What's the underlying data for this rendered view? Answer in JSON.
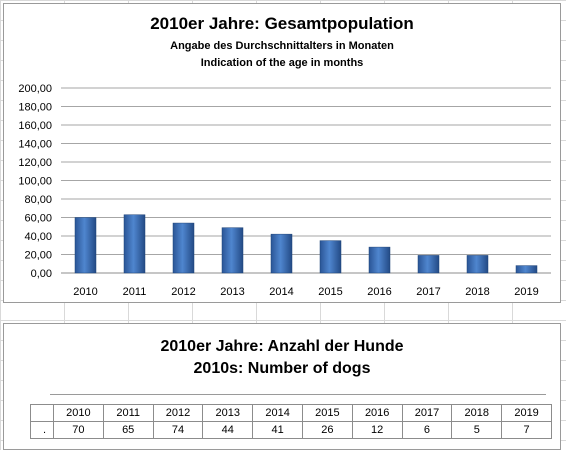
{
  "chart_data": [
    {
      "type": "bar",
      "title": "2010er Jahre: Gesamtpopulation",
      "subtitle": "Angabe des Durchschnittalters in Monaten",
      "subtitle2": "Indication of the age in months",
      "categories": [
        "2010",
        "2011",
        "2012",
        "2013",
        "2014",
        "2015",
        "2016",
        "2017",
        "2018",
        "2019"
      ],
      "values": [
        60,
        63,
        54,
        49,
        42,
        35,
        28,
        19,
        19,
        8
      ],
      "ylim": [
        0,
        200
      ],
      "yticks": [
        "0,00",
        "20,00",
        "40,00",
        "60,00",
        "80,00",
        "100,00",
        "120,00",
        "140,00",
        "160,00",
        "180,00",
        "200,00"
      ],
      "grid": true,
      "bar_color": "#3b6fb6"
    },
    {
      "type": "table",
      "title": "2010er Jahre: Anzahl der Hunde",
      "subtitle": "2010s: Number of dogs",
      "row_label": ".",
      "categories": [
        "2010",
        "2011",
        "2012",
        "2013",
        "2014",
        "2015",
        "2016",
        "2017",
        "2018",
        "2019"
      ],
      "values": [
        "70",
        "65",
        "74",
        "44",
        "41",
        "26",
        "12",
        "6",
        "5",
        "7"
      ]
    }
  ]
}
